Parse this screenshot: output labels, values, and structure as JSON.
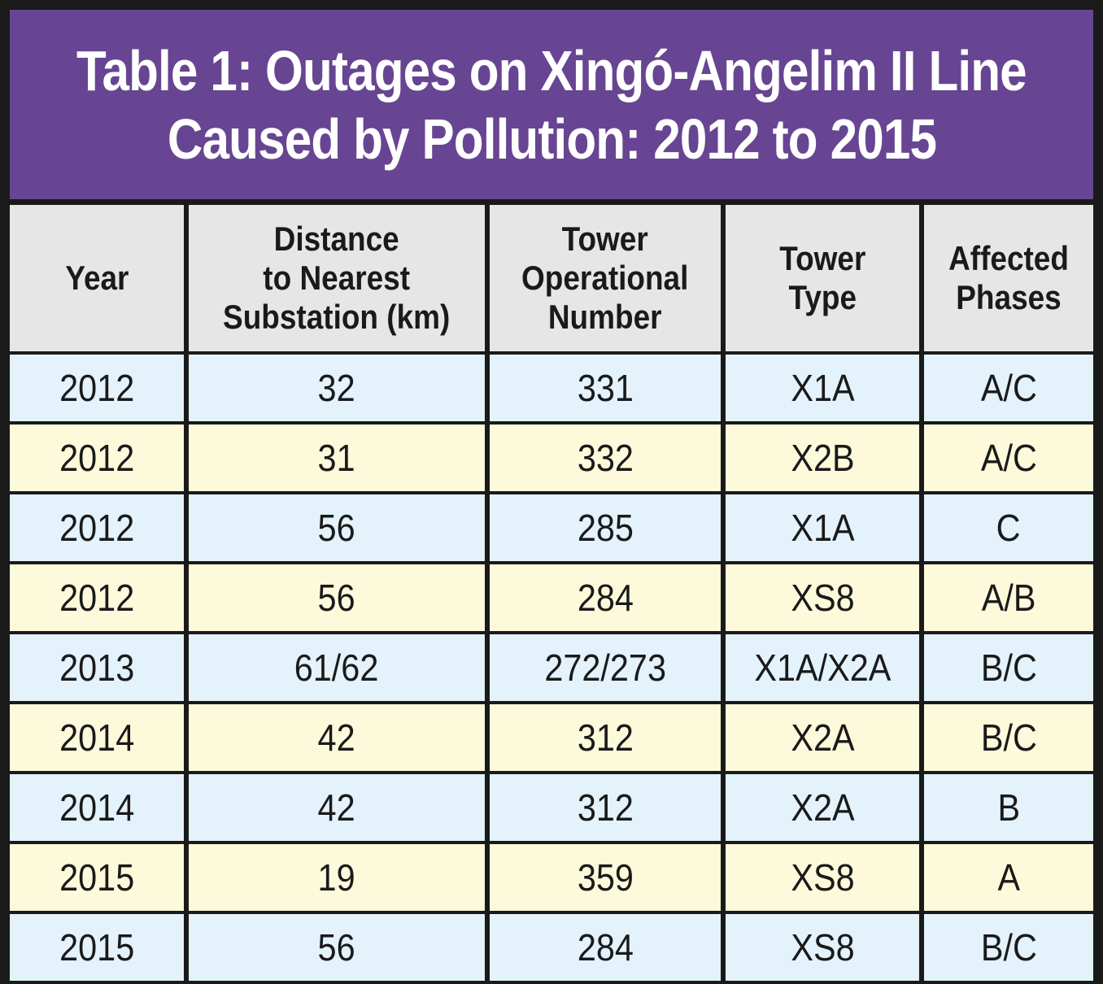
{
  "title": {
    "line1": "Table 1: Outages on Xingó-Angelim II Line",
    "line2": "Caused by Pollution: 2012 to 2015"
  },
  "colors": {
    "title_background": "#674592",
    "header_background": "#e6e6e7",
    "row_blue": "#e3f2fb",
    "row_yellow": "#fdfadb",
    "border": "#1a1a1a"
  },
  "columns": [
    [
      "Year"
    ],
    [
      "Distance",
      "to Nearest",
      "Substation (km)"
    ],
    [
      "Tower",
      "Operational",
      "Number"
    ],
    [
      "Tower",
      "Type"
    ],
    [
      "Affected",
      "Phases"
    ]
  ],
  "rows": [
    [
      "2012",
      "32",
      "331",
      "X1A",
      "A/C"
    ],
    [
      "2012",
      "31",
      "332",
      "X2B",
      "A/C"
    ],
    [
      "2012",
      "56",
      "285",
      "X1A",
      "C"
    ],
    [
      "2012",
      "56",
      "284",
      "XS8",
      "A/B"
    ],
    [
      "2013",
      "61/62",
      "272/273",
      "X1A/X2A",
      "B/C"
    ],
    [
      "2014",
      "42",
      "312",
      "X2A",
      "B/C"
    ],
    [
      "2014",
      "42",
      "312",
      "X2A",
      "B"
    ],
    [
      "2015",
      "19",
      "359",
      "XS8",
      "A"
    ],
    [
      "2015",
      "56",
      "284",
      "XS8",
      "B/C"
    ]
  ]
}
